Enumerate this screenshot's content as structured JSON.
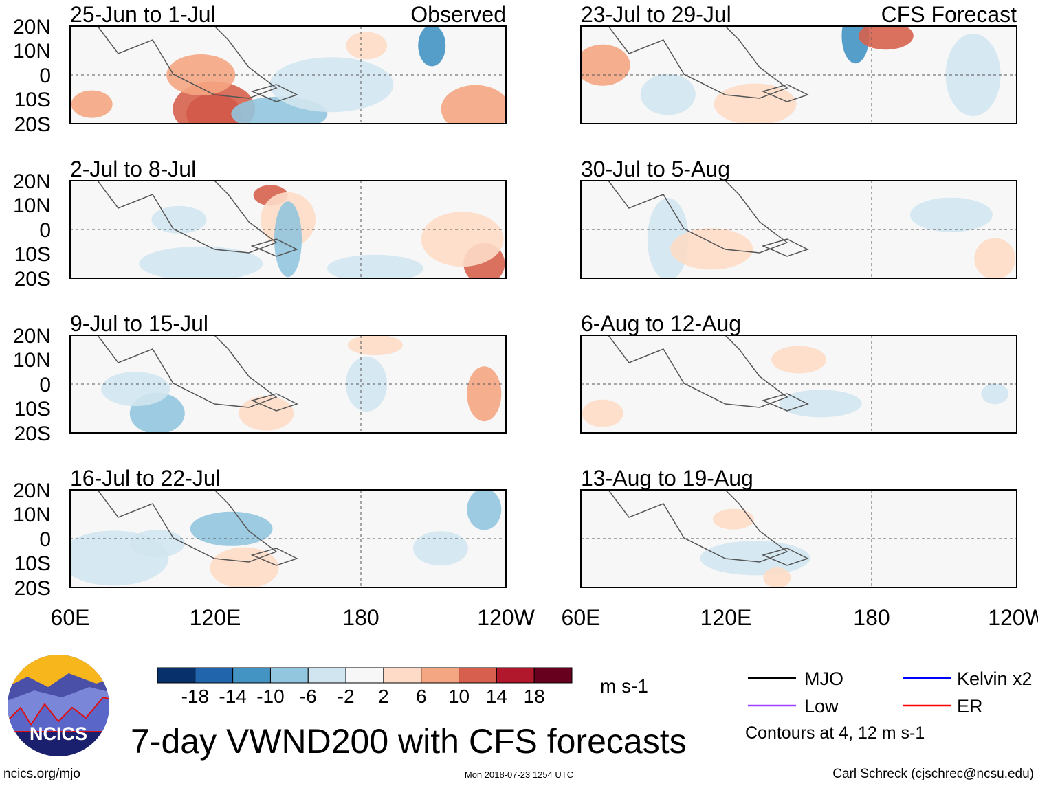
{
  "chart_data": {
    "type": "heatmap",
    "title": "7-day VWND200 with CFS forecasts",
    "variable": "VWND200",
    "units": "m s-1",
    "observed_label": "Observed",
    "forecast_label": "CFS Forecast",
    "lat_labels": [
      "20N",
      "10N",
      "0",
      "10S",
      "20S"
    ],
    "lon_labels": [
      "60E",
      "120E",
      "180",
      "120W"
    ],
    "lat_range": [
      -20,
      20
    ],
    "lon_range": [
      60,
      240
    ],
    "panels_observed": [
      {
        "title": "25-Jun to 1-Jul"
      },
      {
        "title": "2-Jul to 8-Jul"
      },
      {
        "title": "9-Jul to 15-Jul"
      },
      {
        "title": "16-Jul to 22-Jul"
      }
    ],
    "panels_forecast": [
      {
        "title": "23-Jul to 29-Jul"
      },
      {
        "title": "30-Jul to 5-Aug"
      },
      {
        "title": "6-Aug to 12-Aug"
      },
      {
        "title": "13-Aug to 19-Aug"
      }
    ],
    "colorbar": {
      "ticks": [
        "-18",
        "-14",
        "-10",
        "-6",
        "-2",
        "2",
        "6",
        "10",
        "14",
        "18"
      ],
      "colors": [
        "#08306b",
        "#2166ac",
        "#4393c3",
        "#92c5de",
        "#d1e5f0",
        "#f7f7f7",
        "#fddbc7",
        "#f4a582",
        "#d6604d",
        "#b2182b",
        "#67001f"
      ],
      "units": "m s-1"
    },
    "legend": [
      {
        "label": "MJO",
        "color": "#000000"
      },
      {
        "label": "Kelvin x2",
        "color": "#0000ff"
      },
      {
        "label": "Low",
        "color": "#a040ff"
      },
      {
        "label": "ER",
        "color": "#ff0000"
      }
    ],
    "contour_note": "Contours at 4, 12 m s-1"
  },
  "footer": {
    "logo_text": "NCICS",
    "url": "ncics.org/mjo",
    "timestamp": "Mon 2018-07-23 1254 UTC",
    "author": "Carl Schreck (cjschrec@ncsu.edu)"
  }
}
